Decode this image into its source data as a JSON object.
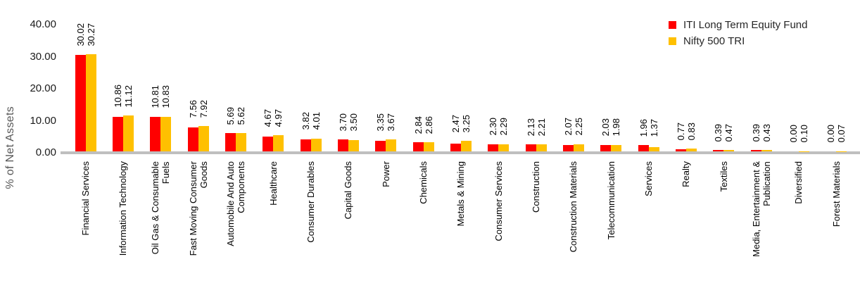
{
  "chart_data": {
    "type": "bar",
    "title": "",
    "ylabel": "% of Net Assets",
    "ylim": [
      0,
      40
    ],
    "ytick_labels": [
      "0.00",
      "10.00",
      "20.00",
      "30.00",
      "40.00"
    ],
    "ytick_values": [
      0,
      10,
      20,
      30,
      40
    ],
    "grid": false,
    "legend_position": "top-right",
    "axis_line_color": "#BFBFBF",
    "categories": [
      [
        "Financial Services"
      ],
      [
        "Information Technology"
      ],
      [
        "Oil Gas & Consumable",
        "Fuels"
      ],
      [
        "Fast Moving Consumer",
        "Goods"
      ],
      [
        "Automobile And Auto",
        "Components"
      ],
      [
        "Healthcare"
      ],
      [
        "Consumer Durables"
      ],
      [
        "Capital Goods"
      ],
      [
        "Power"
      ],
      [
        "Chemicals"
      ],
      [
        "Metals & Mining"
      ],
      [
        "Consumer Services"
      ],
      [
        "Construction"
      ],
      [
        "Construction Materials"
      ],
      [
        "Telecommunication"
      ],
      [
        "Services"
      ],
      [
        "Realty"
      ],
      [
        "Textiles"
      ],
      [
        "Media, Entertainment &",
        "Publication"
      ],
      [
        "Diversified"
      ],
      [
        "Forest Materials"
      ]
    ],
    "series": [
      {
        "name": "ITI Long Term Equity Fund",
        "color": "#FF0000",
        "values": [
          30.02,
          10.86,
          10.81,
          7.56,
          5.69,
          4.67,
          3.82,
          3.7,
          3.35,
          2.84,
          2.47,
          2.3,
          2.13,
          2.07,
          2.03,
          1.96,
          0.77,
          0.39,
          0.39,
          0.0,
          0.0
        ]
      },
      {
        "name": "Nifty 500 TRI",
        "color": "#FFC000",
        "values": [
          30.27,
          11.12,
          10.83,
          7.92,
          5.62,
          4.97,
          4.01,
          3.5,
          3.67,
          2.86,
          3.25,
          2.29,
          2.21,
          2.25,
          1.98,
          1.37,
          0.83,
          0.47,
          0.43,
          0.1,
          0.07
        ]
      }
    ]
  }
}
